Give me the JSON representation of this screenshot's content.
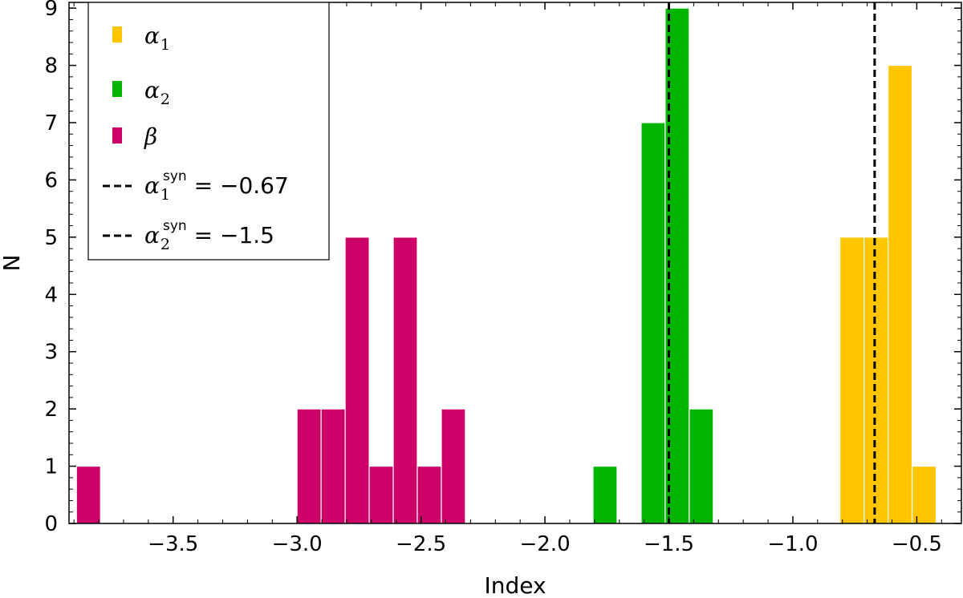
{
  "chart_data": {
    "type": "bar",
    "xlabel": "Index",
    "ylabel": "N",
    "xlim": [
      -3.92,
      -0.32
    ],
    "ylim": [
      0,
      9.1
    ],
    "xticks": [
      -3.5,
      -3.0,
      -2.5,
      -2.0,
      -1.5,
      -1.0,
      -0.5
    ],
    "xtick_labels": [
      "−3.5",
      "−3.0",
      "−2.5",
      "−2.0",
      "−1.5",
      "−1.0",
      "−0.5"
    ],
    "yticks": [
      0,
      1,
      2,
      3,
      4,
      5,
      6,
      7,
      8,
      9
    ],
    "ytick_labels": [
      "0",
      "1",
      "2",
      "3",
      "4",
      "5",
      "6",
      "7",
      "8",
      "9"
    ],
    "bin_width": 0.097,
    "series": [
      {
        "name": "alpha_1",
        "legend_symbol": "α",
        "legend_sub": "1",
        "color": "#FFC600",
        "bins": [
          {
            "left": -0.81,
            "count": 5
          },
          {
            "left": -0.713,
            "count": 5
          },
          {
            "left": -0.616,
            "count": 8
          },
          {
            "left": -0.519,
            "count": 1
          }
        ]
      },
      {
        "name": "alpha_2",
        "legend_symbol": "α",
        "legend_sub": "2",
        "color": "#00B400",
        "bins": [
          {
            "left": -1.806,
            "count": 1
          },
          {
            "left": -1.612,
            "count": 7
          },
          {
            "left": -1.515,
            "count": 9
          },
          {
            "left": -1.418,
            "count": 2
          }
        ]
      },
      {
        "name": "beta",
        "legend_symbol": "β",
        "legend_sub": "",
        "color": "#CC0066",
        "bins": [
          {
            "left": -3.89,
            "count": 1
          },
          {
            "left": -3.0,
            "count": 2
          },
          {
            "left": -2.903,
            "count": 2
          },
          {
            "left": -2.806,
            "count": 5
          },
          {
            "left": -2.709,
            "count": 1
          },
          {
            "left": -2.612,
            "count": 5
          },
          {
            "left": -2.515,
            "count": 1
          },
          {
            "left": -2.418,
            "count": 2
          }
        ]
      }
    ],
    "vlines": [
      {
        "name": "alpha_1_syn",
        "x": -0.67,
        "style": "dashed",
        "color": "#000000",
        "legend_symbol": "α",
        "legend_sub": "1",
        "legend_sup": "syn",
        "legend_rest": " = −0.67"
      },
      {
        "name": "alpha_2_syn",
        "x": -1.5,
        "style": "dashed",
        "color": "#000000",
        "legend_symbol": "α",
        "legend_sub": "2",
        "legend_sup": "syn",
        "legend_rest": " = −1.5"
      }
    ],
    "legend_position": "upper-left"
  }
}
